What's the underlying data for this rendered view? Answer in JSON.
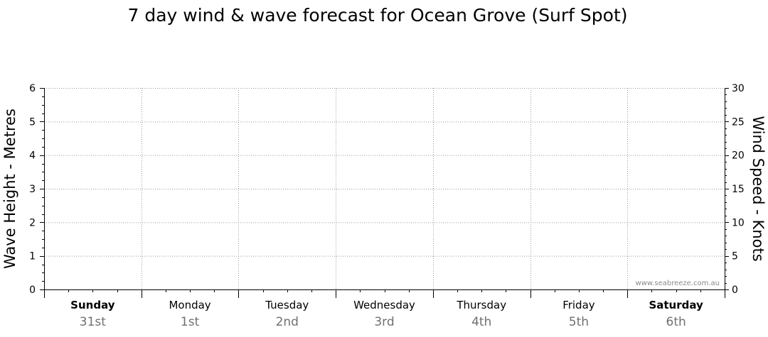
{
  "chart_data": {
    "type": "line",
    "title": "7 day wind & wave forecast for Ocean Grove  (Surf Spot)",
    "ylabel_left": "Wave Height - Metres",
    "ylabel_right": "Wind Speed - Knots",
    "ylim_left": [
      0,
      6
    ],
    "ylim_right": [
      0,
      30
    ],
    "yticks_left": [
      "0",
      "1",
      "2",
      "3",
      "4",
      "5",
      "6"
    ],
    "yticks_right": [
      "0",
      "5",
      "10",
      "15",
      "20",
      "25",
      "30"
    ],
    "grid": true,
    "days": [
      {
        "name": "Sunday",
        "date": "31st",
        "bold": true
      },
      {
        "name": "Monday",
        "date": "1st",
        "bold": false
      },
      {
        "name": "Tuesday",
        "date": "2nd",
        "bold": false
      },
      {
        "name": "Wednesday",
        "date": "3rd",
        "bold": false
      },
      {
        "name": "Thursday",
        "date": "4th",
        "bold": false
      },
      {
        "name": "Friday",
        "date": "5th",
        "bold": false
      },
      {
        "name": "Saturday",
        "date": "6th",
        "bold": true
      }
    ],
    "series": [],
    "watermark": "www.seabreeze.com.au"
  }
}
